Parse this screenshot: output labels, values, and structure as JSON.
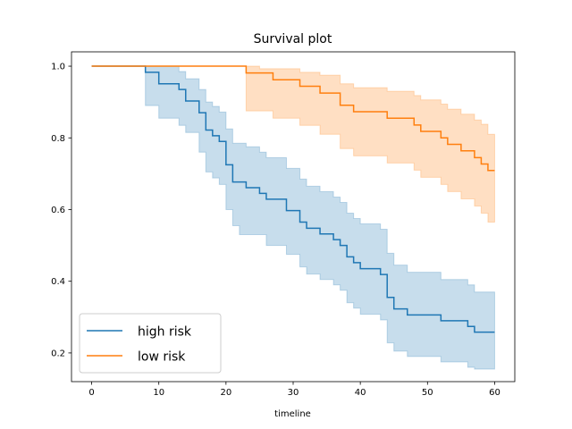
{
  "chart_data": {
    "type": "line",
    "title": "Survival plot",
    "xlabel": "timeline",
    "ylabel": "",
    "xlim": [
      -3,
      63
    ],
    "ylim": [
      0.12,
      1.04
    ],
    "xticks": [
      0,
      10,
      20,
      30,
      40,
      50,
      60
    ],
    "yticks": [
      0.2,
      0.4,
      0.6,
      0.8,
      1.0
    ],
    "grid": false,
    "legend_position": "lower-left",
    "series": [
      {
        "name": "high risk",
        "color": "#1f77b4",
        "band_color": "#1f77b4",
        "steps": [
          [
            0,
            1.0
          ],
          [
            8,
            0.983
          ],
          [
            10,
            0.951
          ],
          [
            13,
            0.935
          ],
          [
            14,
            0.903
          ],
          [
            16,
            0.87
          ],
          [
            17,
            0.822
          ],
          [
            18,
            0.806
          ],
          [
            19,
            0.79
          ],
          [
            20,
            0.725
          ],
          [
            21,
            0.677
          ],
          [
            23,
            0.661
          ],
          [
            25,
            0.645
          ],
          [
            26,
            0.629
          ],
          [
            29,
            0.597
          ],
          [
            31,
            0.565
          ],
          [
            32,
            0.548
          ],
          [
            34,
            0.532
          ],
          [
            36,
            0.516
          ],
          [
            37,
            0.5
          ],
          [
            38,
            0.468
          ],
          [
            39,
            0.452
          ],
          [
            40,
            0.435
          ],
          [
            43,
            0.419
          ],
          [
            44,
            0.355
          ],
          [
            45,
            0.323
          ],
          [
            47,
            0.306
          ],
          [
            52,
            0.29
          ],
          [
            56,
            0.274
          ],
          [
            57,
            0.258
          ],
          [
            60,
            0.258
          ]
        ],
        "ci_lower": [
          [
            0,
            1.0
          ],
          [
            8,
            0.89
          ],
          [
            10,
            0.855
          ],
          [
            13,
            0.835
          ],
          [
            14,
            0.815
          ],
          [
            16,
            0.76
          ],
          [
            17,
            0.705
          ],
          [
            18,
            0.688
          ],
          [
            19,
            0.67
          ],
          [
            20,
            0.6
          ],
          [
            21,
            0.555
          ],
          [
            22,
            0.53
          ],
          [
            26,
            0.5
          ],
          [
            29,
            0.475
          ],
          [
            31,
            0.44
          ],
          [
            32,
            0.42
          ],
          [
            34,
            0.405
          ],
          [
            36,
            0.39
          ],
          [
            37,
            0.375
          ],
          [
            38,
            0.34
          ],
          [
            39,
            0.325
          ],
          [
            40,
            0.308
          ],
          [
            43,
            0.292
          ],
          [
            44,
            0.228
          ],
          [
            45,
            0.205
          ],
          [
            47,
            0.19
          ],
          [
            52,
            0.175
          ],
          [
            56,
            0.16
          ],
          [
            57,
            0.155
          ],
          [
            60,
            0.155
          ]
        ],
        "ci_upper": [
          [
            0,
            1.0
          ],
          [
            8,
            1.0
          ],
          [
            10,
            1.0
          ],
          [
            13,
            0.985
          ],
          [
            14,
            0.965
          ],
          [
            16,
            0.935
          ],
          [
            17,
            0.9
          ],
          [
            18,
            0.888
          ],
          [
            19,
            0.872
          ],
          [
            20,
            0.825
          ],
          [
            21,
            0.785
          ],
          [
            23,
            0.775
          ],
          [
            25,
            0.76
          ],
          [
            26,
            0.745
          ],
          [
            29,
            0.715
          ],
          [
            31,
            0.685
          ],
          [
            32,
            0.665
          ],
          [
            34,
            0.65
          ],
          [
            36,
            0.635
          ],
          [
            37,
            0.62
          ],
          [
            38,
            0.59
          ],
          [
            39,
            0.575
          ],
          [
            40,
            0.56
          ],
          [
            43,
            0.545
          ],
          [
            44,
            0.478
          ],
          [
            45,
            0.445
          ],
          [
            47,
            0.425
          ],
          [
            52,
            0.405
          ],
          [
            56,
            0.39
          ],
          [
            57,
            0.37
          ],
          [
            60,
            0.37
          ]
        ]
      },
      {
        "name": "low risk",
        "color": "#ff7f0e",
        "band_color": "#ff7f0e",
        "steps": [
          [
            0,
            1.0
          ],
          [
            23,
            0.981
          ],
          [
            27,
            0.962
          ],
          [
            31,
            0.944
          ],
          [
            34,
            0.925
          ],
          [
            37,
            0.891
          ],
          [
            39,
            0.873
          ],
          [
            44,
            0.855
          ],
          [
            48,
            0.836
          ],
          [
            49,
            0.818
          ],
          [
            52,
            0.8
          ],
          [
            53,
            0.782
          ],
          [
            55,
            0.764
          ],
          [
            57,
            0.745
          ],
          [
            58,
            0.727
          ],
          [
            59,
            0.709
          ],
          [
            60,
            0.709
          ]
        ],
        "ci_lower": [
          [
            0,
            1.0
          ],
          [
            23,
            0.875
          ],
          [
            27,
            0.855
          ],
          [
            31,
            0.835
          ],
          [
            34,
            0.81
          ],
          [
            37,
            0.77
          ],
          [
            39,
            0.75
          ],
          [
            44,
            0.73
          ],
          [
            48,
            0.71
          ],
          [
            49,
            0.69
          ],
          [
            52,
            0.67
          ],
          [
            53,
            0.65
          ],
          [
            55,
            0.63
          ],
          [
            57,
            0.61
          ],
          [
            58,
            0.59
          ],
          [
            59,
            0.565
          ],
          [
            60,
            0.565
          ]
        ],
        "ci_upper": [
          [
            0,
            1.0
          ],
          [
            23,
            1.0
          ],
          [
            25,
            0.993
          ],
          [
            31,
            0.983
          ],
          [
            34,
            0.975
          ],
          [
            37,
            0.951
          ],
          [
            39,
            0.94
          ],
          [
            44,
            0.93
          ],
          [
            48,
            0.918
          ],
          [
            49,
            0.906
          ],
          [
            52,
            0.894
          ],
          [
            53,
            0.88
          ],
          [
            55,
            0.866
          ],
          [
            57,
            0.85
          ],
          [
            58,
            0.838
          ],
          [
            59,
            0.81
          ],
          [
            60,
            0.81
          ]
        ]
      }
    ]
  }
}
